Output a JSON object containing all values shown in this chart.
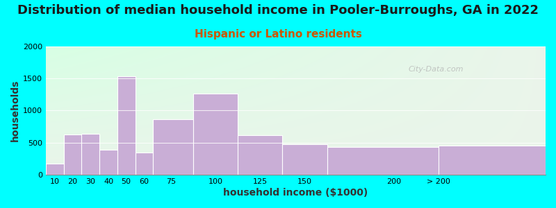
{
  "title": "Distribution of median household income in Pooler-Burroughs, GA in 2022",
  "subtitle": "Hispanic or Latino residents",
  "xlabel": "household income ($1000)",
  "ylabel": "households",
  "bin_edges": [
    5,
    15,
    25,
    35,
    45,
    55,
    65,
    87.5,
    112.5,
    137.5,
    162.5,
    225,
    285
  ],
  "bar_values": [
    175,
    625,
    635,
    390,
    1530,
    350,
    865,
    1260,
    615,
    475,
    430,
    450
  ],
  "tick_positions": [
    10,
    20,
    30,
    40,
    50,
    60,
    75,
    100,
    125,
    150,
    200,
    225
  ],
  "tick_labels": [
    "10",
    "20",
    "30",
    "40",
    "50",
    "60",
    "75",
    "100",
    "125",
    "150",
    "200",
    "> 200"
  ],
  "bar_color": "#c9aed6",
  "bar_edge_color": "#ffffff",
  "background_outer": "#00ffff",
  "ylim": [
    0,
    2000
  ],
  "yticks": [
    0,
    500,
    1000,
    1500,
    2000
  ],
  "title_fontsize": 13,
  "subtitle_fontsize": 11,
  "subtitle_color": "#cc5500",
  "axis_label_fontsize": 10,
  "tick_fontsize": 8,
  "watermark": "City-Data.com"
}
